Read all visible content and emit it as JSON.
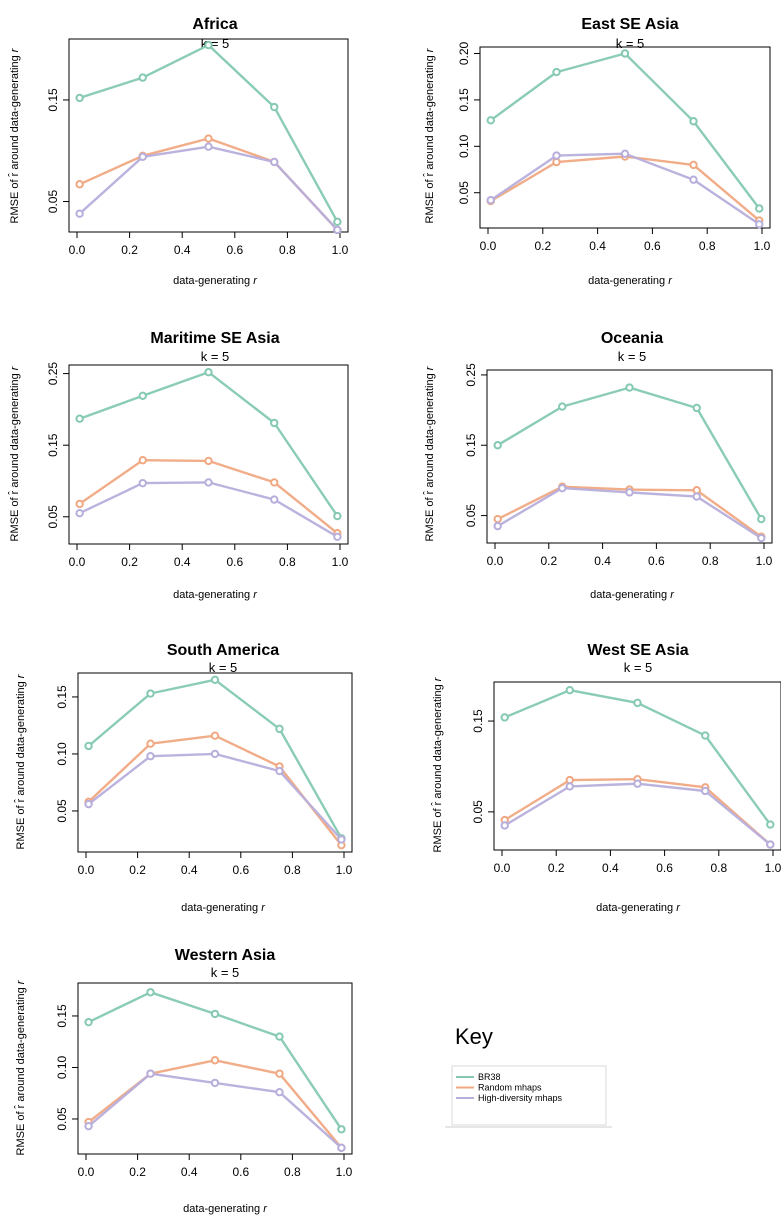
{
  "colors": {
    "BR38": "#84c9b0",
    "Random mhaps": "#f0a882",
    "High-diversity mhaps": "#b7aedb"
  },
  "key": {
    "title": "Key",
    "entries": [
      "BR38",
      "Random mhaps",
      "High-diversity mhaps"
    ]
  },
  "chart_data": [
    {
      "type": "line",
      "title": "Africa",
      "subtitle": "k = 5",
      "xlabel": "data-generating r",
      "ylabel": "RMSE of r̂ around data-generating r",
      "x": [
        0.01,
        0.25,
        0.5,
        0.75,
        0.99
      ],
      "xlim": [
        0,
        1
      ],
      "ylim": [
        0.02,
        0.21
      ],
      "xticks": [
        "0.0",
        "0.2",
        "0.4",
        "0.6",
        "0.8",
        "1.0"
      ],
      "yticks": [
        "0.05",
        "0.15"
      ],
      "series": [
        {
          "name": "BR38",
          "values": [
            0.152,
            0.172,
            0.204,
            0.143,
            0.03
          ]
        },
        {
          "name": "Random mhaps",
          "values": [
            0.067,
            0.095,
            0.112,
            0.089,
            0.022
          ]
        },
        {
          "name": "High-diversity mhaps",
          "values": [
            0.038,
            0.094,
            0.104,
            0.089,
            0.022
          ]
        }
      ]
    },
    {
      "type": "line",
      "title": "East SE Asia",
      "subtitle": "k = 5",
      "xlabel": "data-generating r",
      "ylabel": "RMSE of r̂ around data-generating r",
      "x": [
        0.01,
        0.25,
        0.5,
        0.75,
        0.99
      ],
      "xlim": [
        0,
        1
      ],
      "ylim": [
        0.012,
        0.207
      ],
      "xticks": [
        "0.0",
        "0.2",
        "0.4",
        "0.6",
        "0.8",
        "1.0"
      ],
      "yticks": [
        "0.05",
        "0.10",
        "0.15",
        "0.20"
      ],
      "series": [
        {
          "name": "BR38",
          "values": [
            0.128,
            0.18,
            0.2,
            0.127,
            0.033
          ]
        },
        {
          "name": "Random mhaps",
          "values": [
            0.041,
            0.083,
            0.089,
            0.08,
            0.02
          ]
        },
        {
          "name": "High-diversity mhaps",
          "values": [
            0.042,
            0.09,
            0.092,
            0.064,
            0.016
          ]
        }
      ]
    },
    {
      "type": "line",
      "title": "Maritime SE Asia",
      "subtitle": "k = 5",
      "xlabel": "data-generating r",
      "ylabel": "RMSE of r̂ around data-generating r",
      "x": [
        0.01,
        0.25,
        0.5,
        0.75,
        0.99
      ],
      "xlim": [
        0,
        1
      ],
      "ylim": [
        0.012,
        0.262
      ],
      "xticks": [
        "0.0",
        "0.2",
        "0.4",
        "0.6",
        "0.8",
        "1.0"
      ],
      "yticks": [
        "0.05",
        "0.15",
        "0.25"
      ],
      "series": [
        {
          "name": "BR38",
          "values": [
            0.187,
            0.219,
            0.252,
            0.181,
            0.051
          ]
        },
        {
          "name": "Random mhaps",
          "values": [
            0.068,
            0.129,
            0.128,
            0.098,
            0.027
          ]
        },
        {
          "name": "High-diversity mhaps",
          "values": [
            0.055,
            0.097,
            0.098,
            0.074,
            0.022
          ]
        }
      ]
    },
    {
      "type": "line",
      "title": "Oceania",
      "subtitle": "k = 5",
      "xlabel": "data-generating r",
      "ylabel": "RMSE of r̂ around data-generating r",
      "x": [
        0.01,
        0.25,
        0.5,
        0.75,
        0.99
      ],
      "xlim": [
        0,
        1
      ],
      "ylim": [
        0.011,
        0.257
      ],
      "xticks": [
        "0.0",
        "0.2",
        "0.4",
        "0.6",
        "0.8",
        "1.0"
      ],
      "yticks": [
        "0.05",
        "0.15",
        "0.25"
      ],
      "series": [
        {
          "name": "BR38",
          "values": [
            0.15,
            0.205,
            0.232,
            0.203,
            0.045
          ]
        },
        {
          "name": "Random mhaps",
          "values": [
            0.045,
            0.091,
            0.087,
            0.086,
            0.02
          ]
        },
        {
          "name": "High-diversity mhaps",
          "values": [
            0.035,
            0.089,
            0.083,
            0.077,
            0.018
          ]
        }
      ]
    },
    {
      "type": "line",
      "title": "South America",
      "subtitle": "k = 5",
      "xlabel": "data-generating r",
      "ylabel": "RMSE of r̂ around data-generating r",
      "x": [
        0.01,
        0.25,
        0.5,
        0.75,
        0.99
      ],
      "xlim": [
        0,
        1
      ],
      "ylim": [
        0.014,
        0.171
      ],
      "xticks": [
        "0.0",
        "0.2",
        "0.4",
        "0.6",
        "0.8",
        "1.0"
      ],
      "yticks": [
        "0.05",
        "0.10",
        "0.15"
      ],
      "series": [
        {
          "name": "BR38",
          "values": [
            0.107,
            0.153,
            0.165,
            0.122,
            0.026
          ]
        },
        {
          "name": "Random mhaps",
          "values": [
            0.058,
            0.109,
            0.116,
            0.089,
            0.02
          ]
        },
        {
          "name": "High-diversity mhaps",
          "values": [
            0.056,
            0.098,
            0.1,
            0.085,
            0.025
          ]
        }
      ]
    },
    {
      "type": "line",
      "title": "West SE Asia",
      "subtitle": "k = 5",
      "xlabel": "data-generating r",
      "ylabel": "RMSE of r̂ around data-generating r",
      "x": [
        0.01,
        0.25,
        0.5,
        0.75,
        0.99
      ],
      "xlim": [
        0,
        1
      ],
      "ylim": [
        0.008,
        0.193
      ],
      "xticks": [
        "0.0",
        "0.2",
        "0.4",
        "0.6",
        "0.8",
        "1.0"
      ],
      "yticks": [
        "0.05",
        "0.15"
      ],
      "series": [
        {
          "name": "BR38",
          "values": [
            0.154,
            0.184,
            0.17,
            0.134,
            0.036
          ]
        },
        {
          "name": "Random mhaps",
          "values": [
            0.041,
            0.085,
            0.086,
            0.077,
            0.014
          ]
        },
        {
          "name": "High-diversity mhaps",
          "values": [
            0.035,
            0.078,
            0.081,
            0.073,
            0.014
          ]
        }
      ]
    },
    {
      "type": "line",
      "title": "Western Asia",
      "subtitle": "k = 5",
      "xlabel": "data-generating r",
      "ylabel": "RMSE of r̂ around data-generating r",
      "x": [
        0.01,
        0.25,
        0.5,
        0.75,
        0.99
      ],
      "xlim": [
        0,
        1
      ],
      "ylim": [
        0.016,
        0.182
      ],
      "xticks": [
        "0.0",
        "0.2",
        "0.4",
        "0.6",
        "0.8",
        "1.0"
      ],
      "yticks": [
        "0.05",
        "0.10",
        "0.15"
      ],
      "series": [
        {
          "name": "BR38",
          "values": [
            0.144,
            0.173,
            0.152,
            0.13,
            0.04
          ]
        },
        {
          "name": "Random mhaps",
          "values": [
            0.047,
            0.094,
            0.107,
            0.094,
            0.022
          ]
        },
        {
          "name": "High-diversity mhaps",
          "values": [
            0.043,
            0.094,
            0.085,
            0.076,
            0.022
          ]
        }
      ]
    }
  ]
}
